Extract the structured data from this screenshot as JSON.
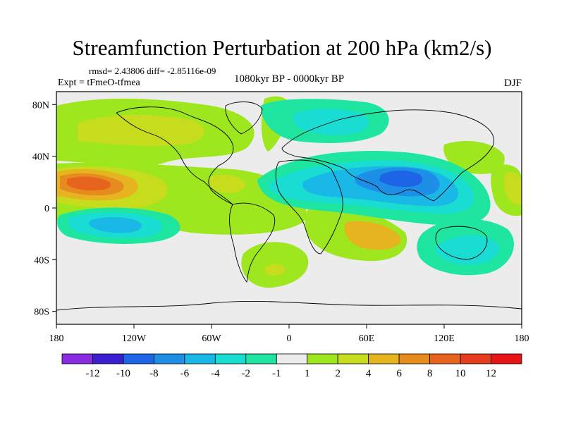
{
  "header": {
    "title": "Streamfunction Perturbation at 200 hPa (km2/s)",
    "stats": "rmsd= 2.43806 diff= -2.85116e-09",
    "experiment": "Expt = tFmeO-tfmea",
    "period": "1080kyr BP - 0000kyr BP",
    "season": "DJF"
  },
  "chart_data": {
    "type": "heatmap",
    "title": "Streamfunction Perturbation at 200 hPa (km2/s)",
    "x_ticks": [
      "180",
      "120W",
      "60W",
      "0",
      "60E",
      "120E",
      "180"
    ],
    "x_tick_values": [
      -180,
      -120,
      -60,
      0,
      60,
      120,
      180
    ],
    "y_ticks": [
      "80N",
      "40N",
      "0",
      "40S",
      "80S"
    ],
    "y_tick_values": [
      80,
      40,
      0,
      -40,
      -80
    ],
    "xlim": [
      -180,
      180
    ],
    "ylim": [
      -90,
      90
    ],
    "levels": [
      -12,
      -10,
      -8,
      -6,
      -4,
      -2,
      -1,
      1,
      2,
      4,
      6,
      8,
      10,
      12
    ],
    "colorbar_labels": [
      "-12",
      "-10",
      "-8",
      "-6",
      "-4",
      "-2",
      "-1",
      "1",
      "2",
      "4",
      "6",
      "8",
      "10",
      "12"
    ],
    "colors": [
      "#8a2be2",
      "#3b1ed0",
      "#1e64e6",
      "#1e8fe6",
      "#19b8e6",
      "#19dcd2",
      "#1ee6a0",
      "#ececec",
      "#9ee61e",
      "#c8dc1e",
      "#e6b41e",
      "#e68c1e",
      "#e6641e",
      "#e63c1e",
      "#e61414"
    ],
    "features": [
      {
        "name": "north-pacific-positive",
        "lon": -150,
        "lat": 20,
        "value": 10
      },
      {
        "name": "south-pacific-negative",
        "lon": -140,
        "lat": -15,
        "value": -6
      },
      {
        "name": "asia-negative",
        "lon": 85,
        "lat": 22,
        "value": -8
      },
      {
        "name": "arctic-europe-negative",
        "lon": 45,
        "lat": 65,
        "value": -2
      },
      {
        "name": "south-africa-positive",
        "lon": 50,
        "lat": -20,
        "value": 6
      },
      {
        "name": "australia-negative",
        "lon": 140,
        "lat": -35,
        "value": -2
      }
    ]
  }
}
